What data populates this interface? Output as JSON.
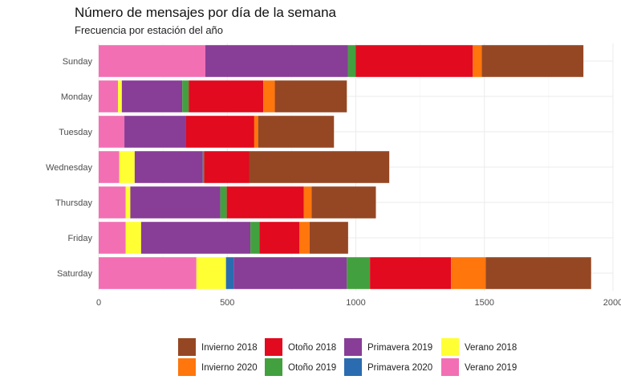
{
  "chart_data": {
    "type": "bar",
    "orientation": "horizontal",
    "stacked": true,
    "title": "Número de mensajes por día de la semana",
    "subtitle": "Frecuencia por estación del año",
    "xlabel": "",
    "ylabel": "",
    "xlim": [
      0,
      2000
    ],
    "x_ticks": [
      "0",
      "500",
      "1000",
      "1500",
      "2000"
    ],
    "grid": true,
    "legend_position": "bottom",
    "categories": [
      "Sunday",
      "Monday",
      "Tuesday",
      "Wednesday",
      "Thursday",
      "Friday",
      "Saturday"
    ],
    "series": [
      {
        "name": "Verano 2019",
        "color": "#F26FB4",
        "values": [
          415,
          75,
          100,
          80,
          105,
          105,
          380
        ]
      },
      {
        "name": "Verano 2018",
        "color": "#FFFF33",
        "values": [
          0,
          15,
          0,
          60,
          18,
          60,
          115
        ]
      },
      {
        "name": "Primavera 2020",
        "color": "#2B6CB0",
        "values": [
          0,
          0,
          0,
          0,
          0,
          0,
          30
        ]
      },
      {
        "name": "Primavera 2019",
        "color": "#883D97",
        "values": [
          555,
          235,
          240,
          265,
          350,
          425,
          440
        ]
      },
      {
        "name": "Otoño 2019",
        "color": "#43A03E",
        "values": [
          30,
          25,
          0,
          5,
          25,
          35,
          90
        ]
      },
      {
        "name": "Otoño 2018",
        "color": "#E10A1E",
        "values": [
          455,
          290,
          265,
          175,
          300,
          155,
          315
        ]
      },
      {
        "name": "Invierno 2020",
        "color": "#FE760C",
        "values": [
          35,
          45,
          15,
          0,
          30,
          40,
          135
        ]
      },
      {
        "name": "Invierno 2018",
        "color": "#954723",
        "values": [
          395,
          280,
          295,
          545,
          250,
          150,
          410
        ]
      }
    ],
    "legend_order": [
      "Invierno 2018",
      "Invierno 2020",
      "Otoño 2018",
      "Otoño 2019",
      "Primavera 2019",
      "Primavera 2020",
      "Verano 2018",
      "Verano 2019"
    ]
  }
}
